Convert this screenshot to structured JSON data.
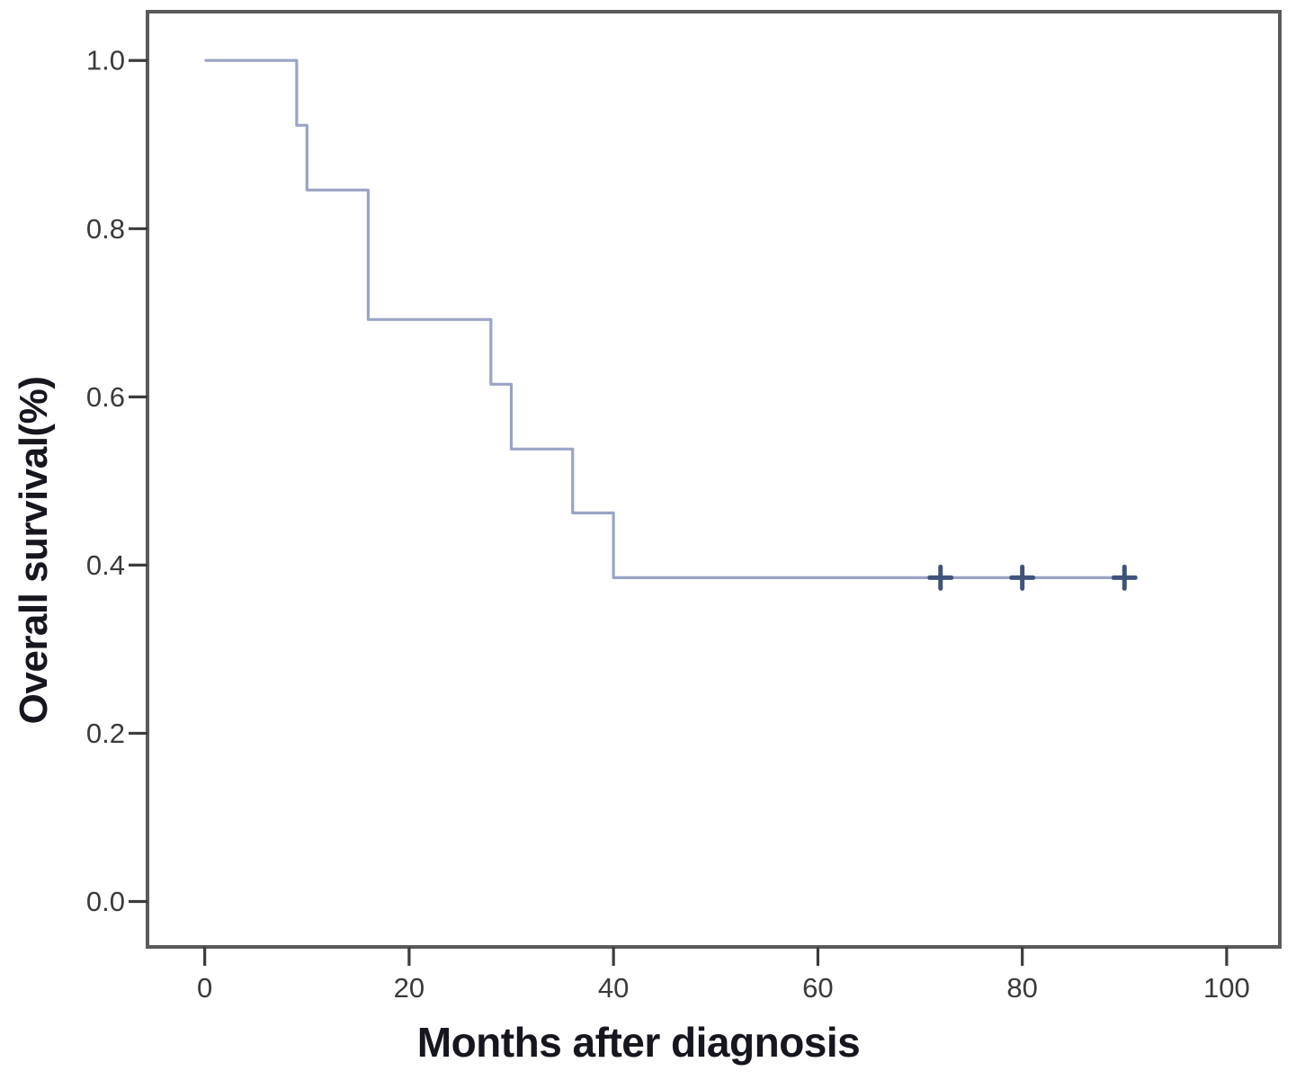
{
  "figure": {
    "background": "#ffffff",
    "border_color": "#5a5a5a",
    "tick_color": "#3c3c3c",
    "tick_label_color": "#3a3a3a",
    "axis_label_color": "#16161e"
  },
  "chart_data": {
    "type": "line",
    "subtype": "kaplan-meier-step",
    "title": "",
    "xlabel": "Months after diagnosis",
    "ylabel": "Overall survival(%)",
    "xlim": [
      -5.6,
      105.2
    ],
    "ylim": [
      -0.054,
      1.058
    ],
    "grid": false,
    "legend": "none",
    "line_color": "#9aa4c5",
    "censor_color": "#40547a",
    "xticks": [
      0,
      20,
      40,
      60,
      80,
      100
    ],
    "xtick_labels": [
      "0",
      "20",
      "40",
      "60",
      "80",
      "100"
    ],
    "ytick_values": [
      1.0,
      0.8,
      0.6,
      0.4,
      0.2,
      0.0
    ],
    "ytick_labels": [
      "1.0",
      "0.8",
      "0.6",
      "0.4",
      "0.2",
      "0.0"
    ],
    "step_points": [
      [
        0,
        1.0
      ],
      [
        9,
        1.0
      ],
      [
        9,
        0.923
      ],
      [
        10,
        0.923
      ],
      [
        10,
        0.846
      ],
      [
        16,
        0.846
      ],
      [
        16,
        0.692
      ],
      [
        28,
        0.692
      ],
      [
        28,
        0.615
      ],
      [
        30,
        0.615
      ],
      [
        30,
        0.538
      ],
      [
        36,
        0.538
      ],
      [
        36,
        0.462
      ],
      [
        40,
        0.462
      ],
      [
        40,
        0.385
      ],
      [
        90.3,
        0.385
      ]
    ],
    "censored_points": [
      [
        72,
        0.385
      ],
      [
        80,
        0.385
      ],
      [
        90,
        0.385
      ]
    ]
  }
}
